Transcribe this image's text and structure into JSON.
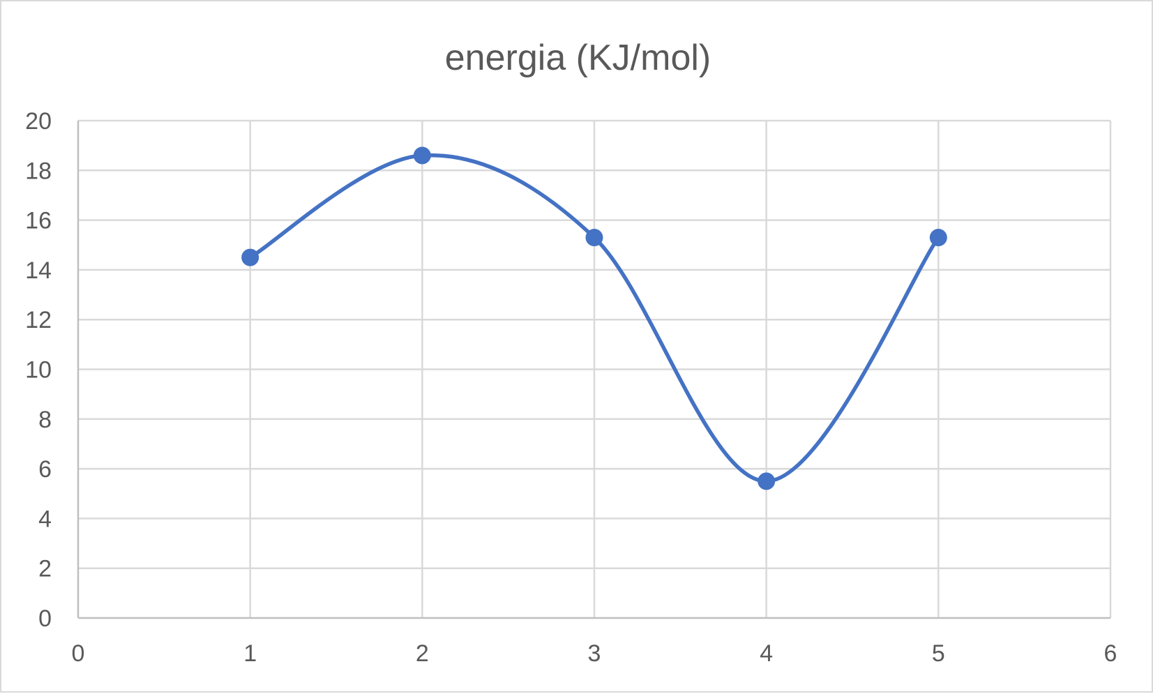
{
  "chart_data": {
    "type": "scatter",
    "title": "energia (KJ/mol)",
    "xlabel": "",
    "ylabel": "",
    "x_ticks": [
      "0",
      "1",
      "2",
      "3",
      "4",
      "5",
      "6"
    ],
    "y_ticks": [
      "0",
      "2",
      "4",
      "6",
      "8",
      "10",
      "12",
      "14",
      "16",
      "18",
      "20"
    ],
    "xlim": [
      0,
      6
    ],
    "ylim": [
      0,
      20
    ],
    "grid": true,
    "smooth_line": true,
    "legend": "none",
    "series": [
      {
        "color": "#4472c4",
        "x": [
          1,
          2,
          3,
          4,
          5
        ],
        "y": [
          14.5,
          18.6,
          15.3,
          5.5,
          15.3
        ]
      }
    ]
  }
}
